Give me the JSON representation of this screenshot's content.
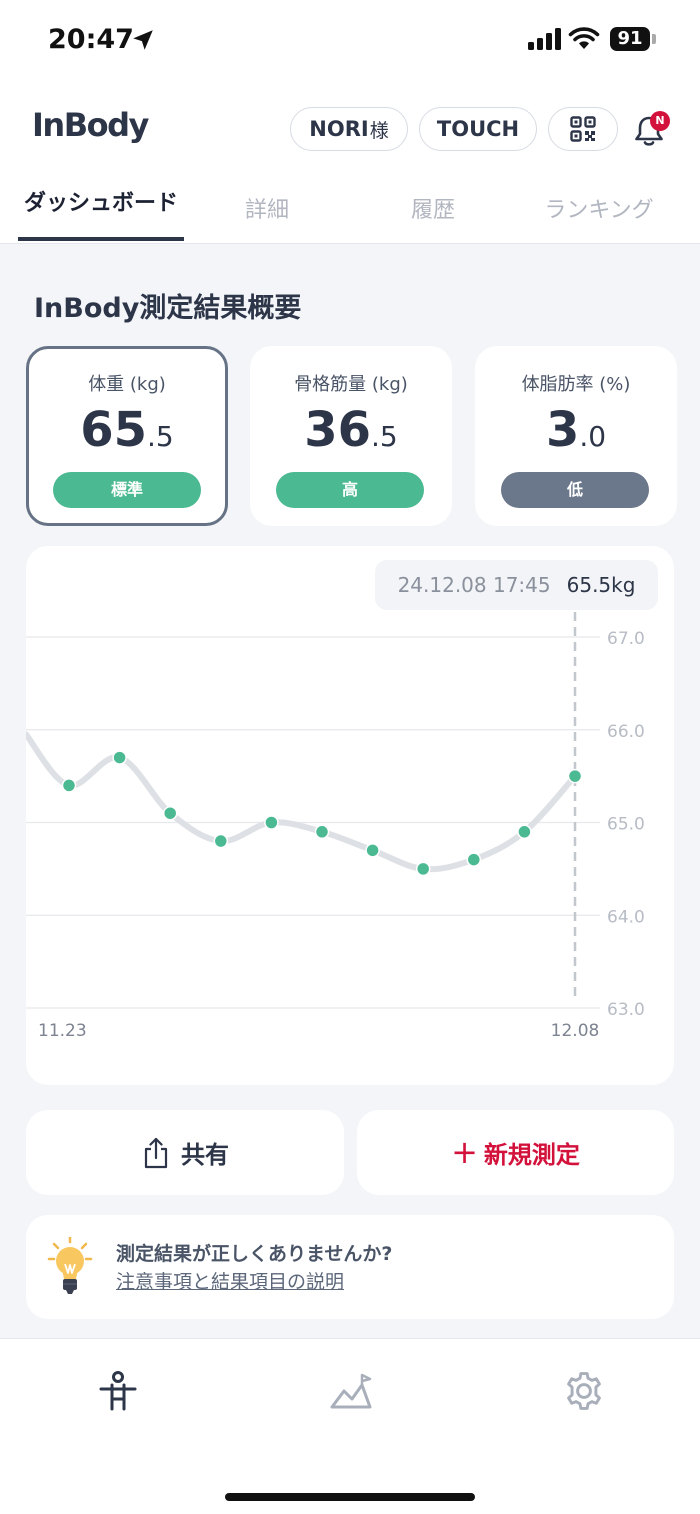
{
  "status": {
    "time": "20:47",
    "battery": "91"
  },
  "header": {
    "logo": "InBody",
    "user_name": "NORI",
    "user_suffix": "様",
    "touch_label": "TOUCH",
    "notification_badge": "N"
  },
  "tabs": [
    {
      "label": "ダッシュボード",
      "active": true
    },
    {
      "label": "詳細"
    },
    {
      "label": "履歴"
    },
    {
      "label": "ランキング"
    }
  ],
  "summary": {
    "title": "InBody測定結果概要",
    "metrics": [
      {
        "label": "体重 (kg)",
        "int": "65",
        "dec": ".5",
        "status": "標準",
        "status_color": "#4bb992",
        "selected": true
      },
      {
        "label": "骨格筋量 (kg)",
        "int": "36",
        "dec": ".5",
        "status": "高",
        "status_color": "#4bb992"
      },
      {
        "label": "体脂肪率 (%)",
        "int": "3",
        "dec": ".0",
        "status": "低",
        "status_color": "#6b778a"
      }
    ]
  },
  "chart_data": {
    "type": "line",
    "tooltip_date": "24.12.08 17:45",
    "tooltip_value": "65.5kg",
    "x_start_label": "11.23",
    "x_end_label": "12.08",
    "y_ticks": [
      "67.0",
      "66.0",
      "65.0",
      "64.0",
      "63.0"
    ],
    "ylim": [
      63.0,
      67.0
    ],
    "values": [
      65.4,
      65.7,
      65.1,
      64.8,
      65.0,
      64.9,
      64.7,
      64.5,
      64.6,
      64.9,
      65.5
    ],
    "point_color": "#4bb992",
    "line_color": "#dde0e4"
  },
  "actions": {
    "share_label": "共有",
    "new_label": "新規測定",
    "new_plus": "+"
  },
  "info": {
    "title": "測定結果が正しくありませんか?",
    "link": "注意事項と結果項目の説明"
  }
}
